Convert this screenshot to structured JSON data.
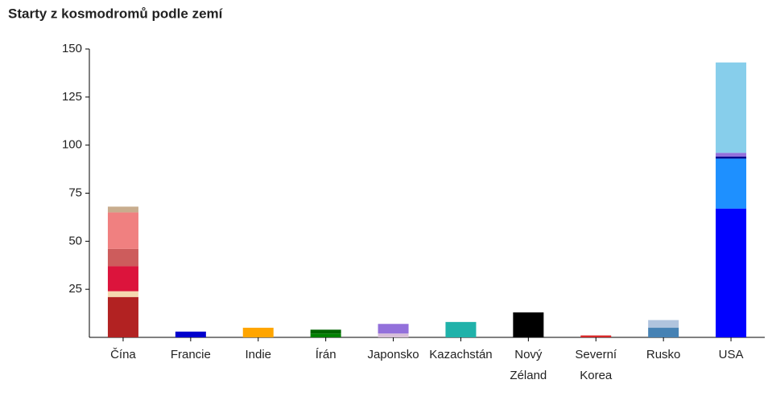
{
  "chart_data": {
    "type": "stacked-bar",
    "title": "Starty z kosmodromů podle zemí",
    "categories": [
      "Čína",
      "Francie",
      "Indie",
      "Írán",
      "Japonsko",
      "Kazachstán",
      "Nový Zéland",
      "Severní Korea",
      "Rusko",
      "USA"
    ],
    "ylim": [
      0,
      150
    ],
    "yticks": [
      25,
      50,
      75,
      100,
      125,
      150
    ],
    "grid": false,
    "series": [
      {
        "color": "#b22222",
        "values": [
          21,
          null,
          null,
          null,
          null,
          null,
          null,
          null,
          null,
          null
        ]
      },
      {
        "color": "#f5d9b0",
        "values": [
          3,
          null,
          null,
          null,
          null,
          null,
          null,
          null,
          null,
          null
        ]
      },
      {
        "color": "#dc143c",
        "values": [
          13,
          null,
          null,
          null,
          null,
          null,
          null,
          null,
          null,
          null
        ]
      },
      {
        "color": "#cd5c5c",
        "values": [
          9,
          null,
          null,
          null,
          null,
          null,
          null,
          null,
          null,
          null
        ]
      },
      {
        "color": "#f08080",
        "values": [
          19,
          null,
          null,
          null,
          null,
          null,
          null,
          null,
          null,
          null
        ]
      },
      {
        "color": "#c8ad8e",
        "values": [
          3,
          null,
          null,
          null,
          null,
          null,
          null,
          null,
          null,
          null
        ]
      },
      {
        "color": "#0000cd",
        "values": [
          null,
          3,
          null,
          null,
          null,
          null,
          null,
          null,
          null,
          null
        ]
      },
      {
        "color": "#ffa500",
        "values": [
          null,
          null,
          5,
          null,
          null,
          null,
          null,
          null,
          null,
          null
        ]
      },
      {
        "color": "#008000",
        "values": [
          null,
          null,
          null,
          2,
          null,
          null,
          null,
          null,
          null,
          null
        ]
      },
      {
        "color": "#006400",
        "values": [
          null,
          null,
          null,
          2,
          null,
          null,
          null,
          null,
          null,
          null
        ]
      },
      {
        "color": "#d8bfd8",
        "values": [
          null,
          null,
          null,
          null,
          2,
          null,
          null,
          null,
          null,
          null
        ]
      },
      {
        "color": "#9370db",
        "values": [
          null,
          null,
          null,
          null,
          5,
          null,
          null,
          null,
          null,
          null
        ]
      },
      {
        "color": "#20b2aa",
        "values": [
          null,
          null,
          null,
          null,
          null,
          8,
          null,
          null,
          null,
          null
        ]
      },
      {
        "color": "#000000",
        "values": [
          null,
          null,
          null,
          null,
          null,
          null,
          13,
          null,
          null,
          null
        ]
      },
      {
        "color": "#d62728",
        "values": [
          null,
          null,
          null,
          null,
          null,
          null,
          null,
          1,
          null,
          null
        ]
      },
      {
        "color": "#4682b4",
        "values": [
          null,
          null,
          null,
          null,
          null,
          null,
          null,
          null,
          5,
          null
        ]
      },
      {
        "color": "#b0c4de",
        "values": [
          null,
          null,
          null,
          null,
          null,
          null,
          null,
          null,
          4,
          null
        ]
      },
      {
        "color": "#0000ff",
        "values": [
          null,
          null,
          null,
          null,
          null,
          null,
          null,
          null,
          null,
          67
        ]
      },
      {
        "color": "#1e90ff",
        "values": [
          null,
          null,
          null,
          null,
          null,
          null,
          null,
          null,
          null,
          26
        ]
      },
      {
        "color": "#00008b",
        "values": [
          null,
          null,
          null,
          null,
          null,
          null,
          null,
          null,
          null,
          1
        ]
      },
      {
        "color": "#9370db",
        "values": [
          null,
          null,
          null,
          null,
          null,
          null,
          null,
          null,
          null,
          2
        ]
      },
      {
        "color": "#87ceeb",
        "values": [
          null,
          null,
          null,
          null,
          null,
          null,
          null,
          null,
          null,
          47
        ]
      }
    ]
  }
}
